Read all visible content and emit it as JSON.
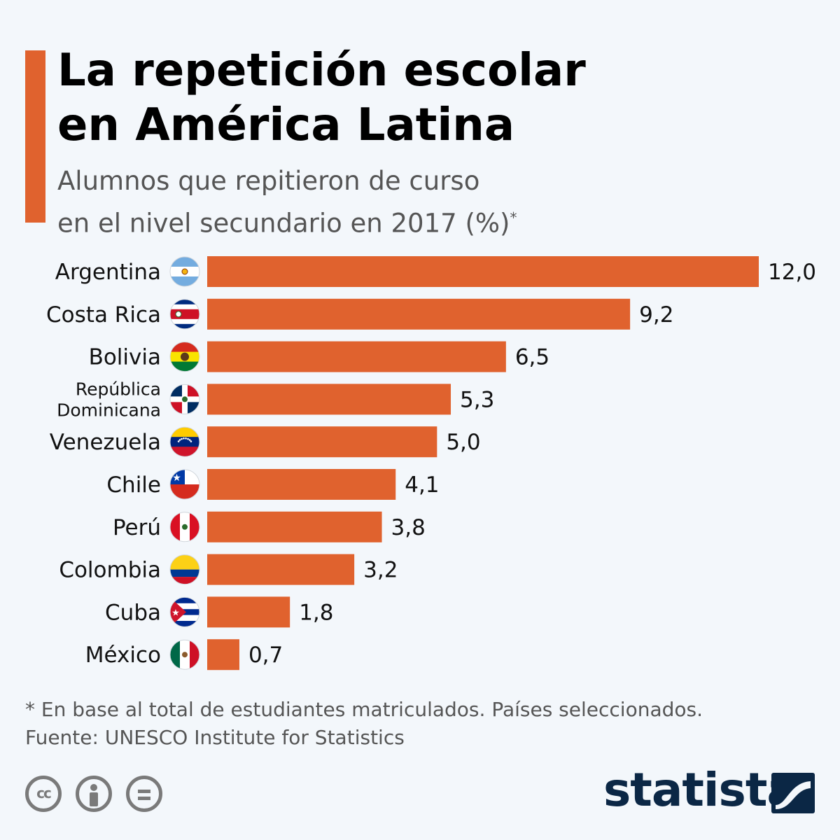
{
  "header": {
    "title_line1": "La repetición escolar",
    "title_line2": "en América Latina",
    "subtitle_line1": "Alumnos que repitieron de curso",
    "subtitle_line2": "en el nivel secundario en 2017 (%)",
    "subtitle_mark": "*"
  },
  "chart_data": {
    "type": "bar",
    "orientation": "horizontal",
    "title": "La repetición escolar en América Latina",
    "subtitle": "Alumnos que repitieron de curso en el nivel secundario en 2017 (%)",
    "categories": [
      "Argentina",
      "Costa Rica",
      "Bolivia",
      "República Dominicana",
      "Venezuela",
      "Chile",
      "Perú",
      "Colombia",
      "Cuba",
      "México"
    ],
    "label_lines": [
      [
        "Argentina"
      ],
      [
        "Costa Rica"
      ],
      [
        "Bolivia"
      ],
      [
        "República",
        "Dominicana"
      ],
      [
        "Venezuela"
      ],
      [
        "Chile"
      ],
      [
        "Perú"
      ],
      [
        "Colombia"
      ],
      [
        "Cuba"
      ],
      [
        "México"
      ]
    ],
    "values": [
      12.0,
      9.2,
      6.5,
      5.3,
      5.0,
      4.1,
      3.8,
      3.2,
      1.8,
      0.7
    ],
    "value_labels": [
      "12,0",
      "9,2",
      "6,5",
      "5,3",
      "5,0",
      "4,1",
      "3,8",
      "3,2",
      "1,8",
      "0,7"
    ],
    "flags": [
      "argentina-flag-icon",
      "costa-rica-flag-icon",
      "bolivia-flag-icon",
      "dominican-republic-flag-icon",
      "venezuela-flag-icon",
      "chile-flag-icon",
      "peru-flag-icon",
      "colombia-flag-icon",
      "cuba-flag-icon",
      "mexico-flag-icon"
    ],
    "xlim": [
      0,
      12
    ],
    "bar_color": "#e0622e",
    "grid": false,
    "xlabel": "",
    "ylabel": ""
  },
  "footnote": {
    "note": "* En base al total de estudiantes matriculados. Países seleccionados.",
    "source": "Fuente: UNESCO Institute for Statistics"
  },
  "license_icons": [
    "cc-icon",
    "attribution-icon",
    "no-derivatives-icon"
  ],
  "brand": {
    "name": "statista",
    "color": "#0b2745"
  }
}
